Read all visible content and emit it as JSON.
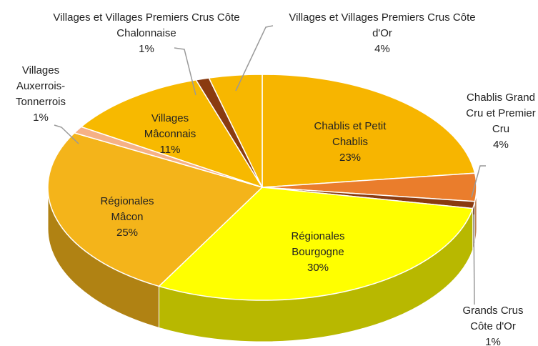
{
  "chart_data": {
    "type": "pie",
    "three_d": true,
    "categories": [
      "Chablis et Petit Chablis",
      "Chablis Grand Cru et Premier Cru",
      "Grands Crus Côte d'Or",
      "Régionales Bourgogne",
      "Régionales Mâcon",
      "Villages Auxerrois-Tonnerrois",
      "Villages Mâconnais",
      "Villages et Villages Premiers Crus Côte Chalonnaise",
      "Villages et Villages Premiers Crus Côte d'Or"
    ],
    "values": [
      23,
      4,
      1,
      30,
      25,
      1,
      11,
      1,
      4
    ],
    "value_labels": [
      "23%",
      "4%",
      "1%",
      "30%",
      "25%",
      "1%",
      "11%",
      "1%",
      "4%"
    ],
    "colors": [
      "#f7b500",
      "#ea7d2c",
      "#8a3b10",
      "#ffff00",
      "#f4b41a",
      "#f6b185",
      "#f7b900",
      "#8a3b10",
      "#f7b700"
    ]
  }
}
